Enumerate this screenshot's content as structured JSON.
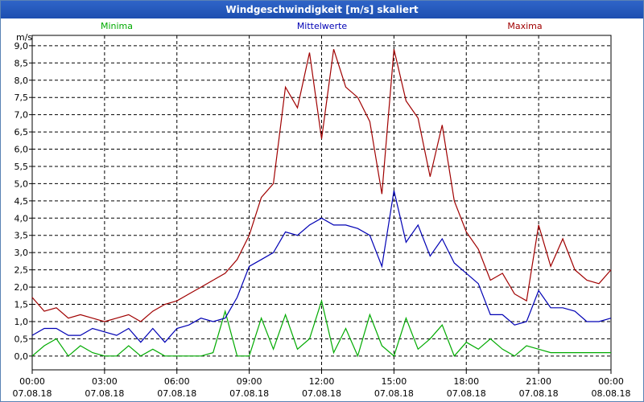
{
  "window": {
    "title": "Windgeschwindigkeit [m/s] skaliert"
  },
  "chart_data": {
    "type": "line",
    "title": "Windgeschwindigkeit [m/s] skaliert",
    "ylabel": "m/s",
    "ylim": [
      -0.4,
      9.3
    ],
    "xlim": [
      0,
      24
    ],
    "grid": true,
    "legend_placement": "top",
    "y_ticks": [
      "0,0",
      "0,5",
      "1,0",
      "1,5",
      "2,0",
      "2,5",
      "3,0",
      "3,5",
      "4,0",
      "4,5",
      "5,0",
      "5,5",
      "6,0",
      "6,5",
      "7,0",
      "7,5",
      "8,0",
      "8,5",
      "9,0"
    ],
    "x_ticks": [
      {
        "time": "00:00",
        "date": "07.08.18"
      },
      {
        "time": "03:00",
        "date": "07.08.18"
      },
      {
        "time": "06:00",
        "date": "07.08.18"
      },
      {
        "time": "09:00",
        "date": "07.08.18"
      },
      {
        "time": "12:00",
        "date": "07.08.18"
      },
      {
        "time": "15:00",
        "date": "07.08.18"
      },
      {
        "time": "18:00",
        "date": "07.08.18"
      },
      {
        "time": "21:00",
        "date": "07.08.18"
      },
      {
        "time": "00:00",
        "date": "08.08.18"
      }
    ],
    "series": [
      {
        "name": "Minima",
        "color": "#00aa00",
        "x": [
          0,
          0.5,
          1,
          1.5,
          2,
          2.5,
          3,
          3.5,
          4,
          4.5,
          5,
          5.5,
          6,
          6.5,
          7,
          7.5,
          8,
          8.5,
          9,
          9.5,
          10,
          10.5,
          11,
          11.5,
          12,
          12.5,
          13,
          13.5,
          14,
          14.5,
          15,
          15.5,
          16,
          16.5,
          17,
          17.5,
          18,
          18.5,
          19,
          19.5,
          20,
          20.5,
          21,
          21.5,
          22,
          22.5,
          23,
          23.5,
          24
        ],
        "values": [
          0.0,
          0.3,
          0.5,
          0.0,
          0.3,
          0.1,
          0.0,
          0.0,
          0.3,
          0.0,
          0.2,
          0.0,
          0.0,
          0.0,
          0.0,
          0.1,
          1.3,
          0.0,
          0.0,
          1.1,
          0.2,
          1.2,
          0.2,
          0.5,
          1.6,
          0.1,
          0.8,
          0.0,
          1.2,
          0.3,
          0.0,
          1.1,
          0.2,
          0.5,
          0.9,
          0.0,
          0.4,
          0.2,
          0.5,
          0.2,
          0.0,
          0.3,
          0.2,
          0.1,
          0.1,
          0.1,
          0.1,
          0.1,
          0.1
        ]
      },
      {
        "name": "Mittelwerte",
        "color": "#0000b4",
        "x": [
          0,
          0.5,
          1,
          1.5,
          2,
          2.5,
          3,
          3.5,
          4,
          4.5,
          5,
          5.5,
          6,
          6.5,
          7,
          7.5,
          8,
          8.5,
          9,
          9.5,
          10,
          10.5,
          11,
          11.5,
          12,
          12.5,
          13,
          13.5,
          14,
          14.5,
          15,
          15.5,
          16,
          16.5,
          17,
          17.5,
          18,
          18.5,
          19,
          19.5,
          20,
          20.5,
          21,
          21.5,
          22,
          22.5,
          23,
          23.5,
          24
        ],
        "values": [
          0.6,
          0.8,
          0.8,
          0.6,
          0.6,
          0.8,
          0.7,
          0.6,
          0.8,
          0.4,
          0.8,
          0.4,
          0.8,
          0.9,
          1.1,
          1.0,
          1.1,
          1.7,
          2.6,
          2.8,
          3.0,
          3.6,
          3.5,
          3.8,
          4.0,
          3.8,
          3.8,
          3.7,
          3.5,
          2.6,
          4.8,
          3.3,
          3.8,
          2.9,
          3.4,
          2.7,
          2.4,
          2.1,
          1.2,
          1.2,
          0.9,
          1.0,
          1.9,
          1.4,
          1.4,
          1.3,
          1.0,
          1.0,
          1.1
        ]
      },
      {
        "name": "Maxima",
        "color": "#a00000",
        "x": [
          0,
          0.5,
          1,
          1.5,
          2,
          2.5,
          3,
          3.5,
          4,
          4.5,
          5,
          5.5,
          6,
          6.5,
          7,
          7.5,
          8,
          8.5,
          9,
          9.5,
          10,
          10.5,
          11,
          11.5,
          12,
          12.5,
          13,
          13.5,
          14,
          14.5,
          15,
          15.5,
          16,
          16.5,
          17,
          17.5,
          18,
          18.5,
          19,
          19.5,
          20,
          20.5,
          21,
          21.5,
          22,
          22.5,
          23,
          23.5,
          24
        ],
        "values": [
          1.7,
          1.3,
          1.4,
          1.1,
          1.2,
          1.1,
          1.0,
          1.1,
          1.2,
          1.0,
          1.3,
          1.5,
          1.6,
          1.8,
          2.0,
          2.2,
          2.4,
          2.8,
          3.5,
          4.6,
          5.0,
          7.8,
          7.2,
          8.8,
          6.3,
          8.9,
          7.8,
          7.5,
          6.8,
          4.7,
          8.9,
          7.4,
          6.9,
          5.2,
          6.7,
          4.5,
          3.6,
          3.1,
          2.2,
          2.4,
          1.8,
          1.6,
          3.8,
          2.6,
          3.4,
          2.5,
          2.2,
          2.1,
          2.5
        ]
      }
    ]
  }
}
